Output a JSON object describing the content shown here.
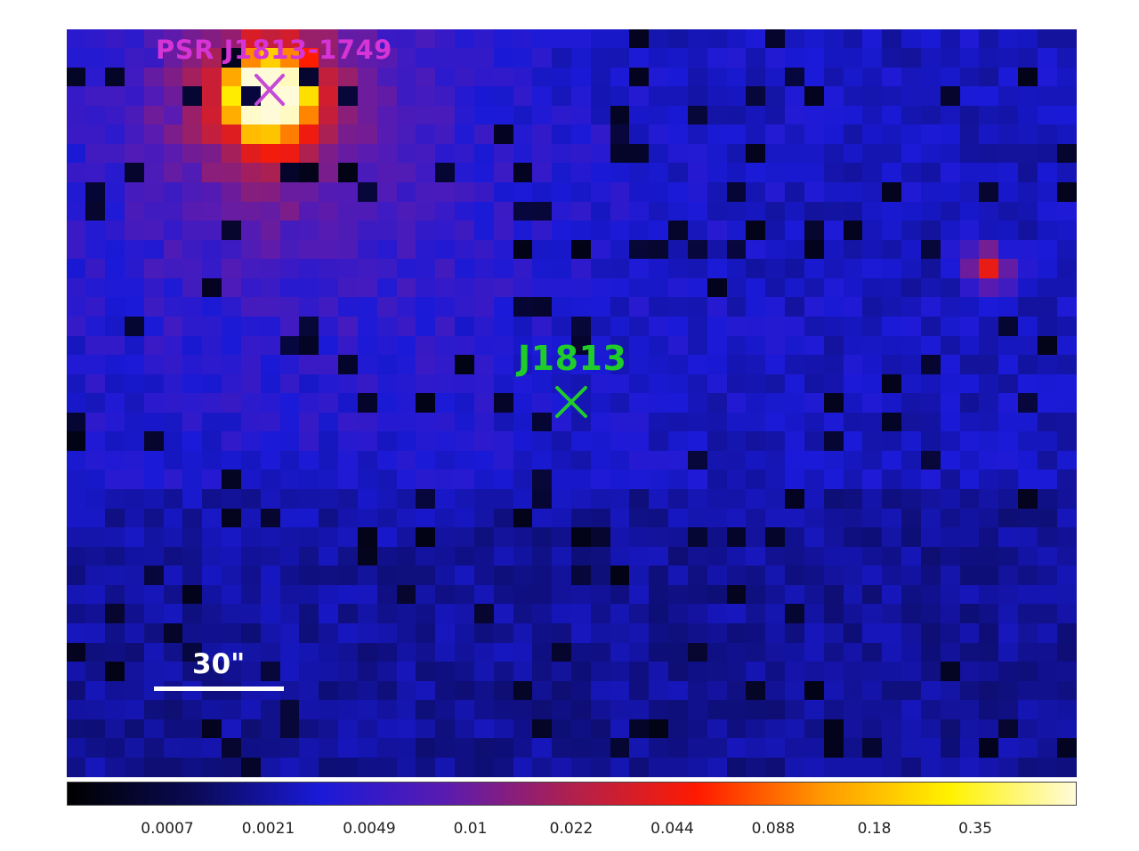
{
  "image": {
    "type": "x-ray count map",
    "colormap": "heat (black-blue-red-yellow-white)",
    "grid_columns": 52,
    "grid_rows": 39
  },
  "sources": [
    {
      "id": "psr",
      "label": "PSR J1813-1749",
      "color": "#d634d6",
      "marker": "x-marker-icon"
    },
    {
      "id": "j1813",
      "label": "J1813",
      "color": "#1fcc2a",
      "marker": "x-marker-icon"
    }
  ],
  "scale_bar": {
    "label": "30\""
  },
  "colorbar": {
    "ticks": [
      "0.0007",
      "0.0021",
      "0.0049",
      "0.01",
      "0.022",
      "0.044",
      "0.088",
      "0.18",
      "0.35"
    ],
    "colors": [
      "#000000",
      "#0a0a55",
      "#1a1ad8",
      "#5a1bb0",
      "#b0204e",
      "#ff1a00",
      "#ff9a00",
      "#fff200",
      "#fffbd8"
    ]
  }
}
